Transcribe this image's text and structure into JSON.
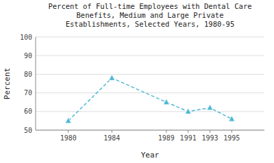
{
  "chart_data": {
    "type": "line",
    "title": "Percent of Full-time Employees with Dental Care\nBenefits, Medium and Large Private\nEstablishments, Selected Years, 1980-95",
    "xlabel": "Year",
    "ylabel": "Percent",
    "x": [
      1980,
      1984,
      1989,
      1991,
      1993,
      1995
    ],
    "values": [
      55,
      78,
      65,
      60,
      62,
      56
    ],
    "xlim": [
      1977,
      1998
    ],
    "xticks": [
      1980,
      1984,
      1989,
      1991,
      1993,
      1995
    ],
    "ylim": [
      50,
      100
    ],
    "yticks": [
      50,
      60,
      70,
      80,
      90,
      100
    ],
    "grid": true,
    "color": "#4DB8D4",
    "marker": "triangle",
    "line_style": "dashed"
  }
}
